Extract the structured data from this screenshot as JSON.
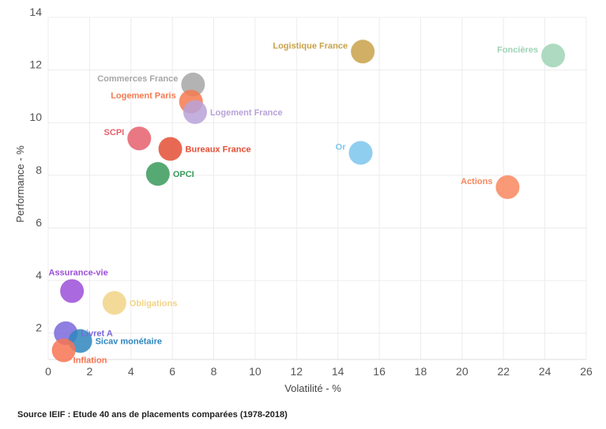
{
  "chart_data": {
    "type": "scatter",
    "title": "",
    "xlabel": "Volatilité - %",
    "ylabel": "Performance - %",
    "xlim": [
      0,
      26
    ],
    "ylim": [
      1,
      14
    ],
    "x_ticks": [
      0,
      2,
      4,
      6,
      8,
      10,
      12,
      14,
      16,
      18,
      20,
      22,
      24,
      26
    ],
    "y_ticks": [
      2,
      4,
      6,
      8,
      10,
      12,
      14
    ],
    "grid": true,
    "points": [
      {
        "label": "Logistique France",
        "x": 15.2,
        "y": 12.7,
        "color": "#c9a24a",
        "label_side": "left"
      },
      {
        "label": "Foncières",
        "x": 24.4,
        "y": 12.55,
        "color": "#9fd3b5",
        "label_side": "left"
      },
      {
        "label": "Commerces France",
        "x": 7.0,
        "y": 11.45,
        "color": "#a6a6a6",
        "label_side": "left"
      },
      {
        "label": "Logement Paris",
        "x": 6.9,
        "y": 10.8,
        "color": "#f47a50",
        "label_side": "left"
      },
      {
        "label": "Logement France",
        "x": 7.1,
        "y": 10.4,
        "color": "#b8a2d8",
        "label_side": "right"
      },
      {
        "label": "SCPI",
        "x": 4.4,
        "y": 9.4,
        "color": "#e5606d",
        "label_side": "left"
      },
      {
        "label": "Bureaux France",
        "x": 5.9,
        "y": 9.0,
        "color": "#e44f35",
        "label_side": "right"
      },
      {
        "label": "Or",
        "x": 15.1,
        "y": 8.85,
        "color": "#7cc6ec",
        "label_side": "left"
      },
      {
        "label": "OPCI",
        "x": 5.3,
        "y": 8.05,
        "color": "#3a9a5c",
        "label_side": "right"
      },
      {
        "label": "Actions",
        "x": 22.2,
        "y": 7.55,
        "color": "#f8875e",
        "label_side": "left"
      },
      {
        "label": "Assurance-vie",
        "x": 1.15,
        "y": 3.6,
        "color": "#9b4fd8",
        "label_side": "above"
      },
      {
        "label": "Obligations",
        "x": 3.2,
        "y": 3.15,
        "color": "#f2d386",
        "label_side": "right"
      },
      {
        "label": "Livret A",
        "x": 0.85,
        "y": 2.0,
        "color": "#7a68dc",
        "label_side": "right"
      },
      {
        "label": "Sicav monétaire",
        "x": 1.55,
        "y": 1.7,
        "color": "#2f86bd",
        "label_side": "right"
      },
      {
        "label": "Inflation",
        "x": 0.75,
        "y": 1.35,
        "color": "#f87452",
        "label_side": "below"
      }
    ]
  },
  "footer": {
    "source": "Source IEIF : Etude 40 ans de placements comparées (1978-2018)"
  }
}
